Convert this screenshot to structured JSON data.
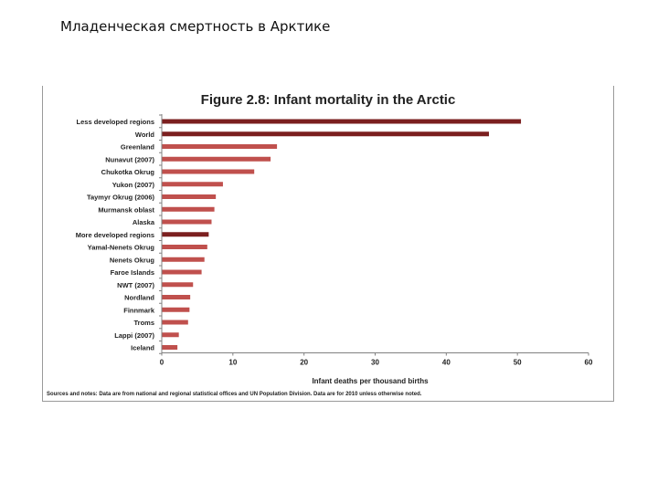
{
  "slide": {
    "title": "Младенческая смертность в Арктике"
  },
  "figure": {
    "notes": "Sources and notes: Data are from national and regional statistical offices and UN Population Division. Data are for 2010 unless otherwise noted."
  },
  "colors": {
    "bar_regular": "#c0504d",
    "bar_dark": "#7b1f1f",
    "axis": "#808080"
  },
  "chart_data": {
    "type": "bar",
    "orientation": "horizontal",
    "title": "Figure 2.8: Infant mortality in the Arctic",
    "xlabel": "Infant deaths per thousand births",
    "ylabel": "",
    "xlim": [
      0,
      60
    ],
    "xticks": [
      0,
      10,
      20,
      30,
      40,
      50,
      60
    ],
    "grid": false,
    "categories": [
      "Less developed regions",
      "World",
      "Greenland",
      "Nunavut (2007)",
      "Chukotka Okrug",
      "Yukon (2007)",
      "Taymyr Okrug (2006)",
      "Murmansk oblast",
      "Alaska",
      "More developed regions",
      "Yamal-Nenets Okrug",
      "Nenets Okrug",
      "Faroe Islands",
      "NWT (2007)",
      "Nordland",
      "Finnmark",
      "Troms",
      "Lappi (2007)",
      "Iceland"
    ],
    "values": [
      50.5,
      46,
      16.2,
      15.3,
      13,
      8.6,
      7.6,
      7.4,
      7,
      6.6,
      6.4,
      6,
      5.6,
      4.4,
      4,
      3.9,
      3.7,
      2.4,
      2.2
    ],
    "highlight": [
      "Less developed regions",
      "World",
      "More developed regions"
    ]
  }
}
